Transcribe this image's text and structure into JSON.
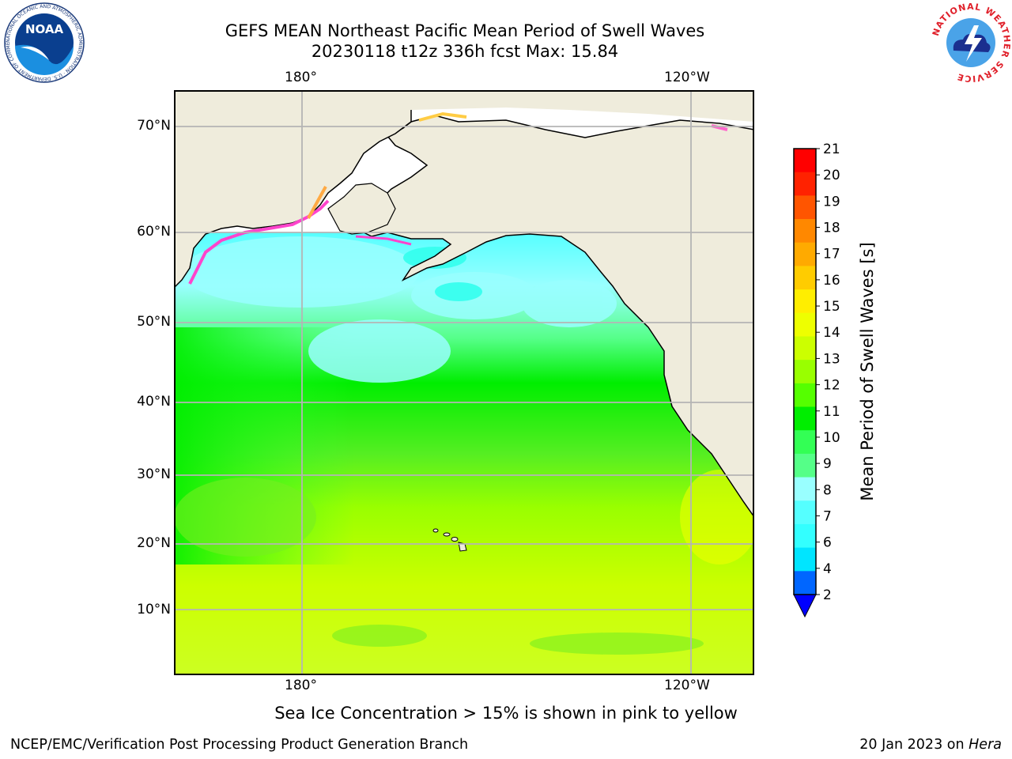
{
  "title": {
    "line1": "GEFS MEAN Northeast Pacific Mean Period of Swell Waves",
    "line2": "20230118 t12z 336h fcst   Max: 15.84"
  },
  "map": {
    "top_lon_labels": [
      "180°",
      "120°W"
    ],
    "bottom_lon_labels": [
      "180°",
      "120°W"
    ],
    "lat_labels": [
      "70°N",
      "60°N",
      "50°N",
      "40°N",
      "30°N",
      "20°N",
      "10°N"
    ],
    "land_color": "#efecdc",
    "grid_color": "#b4b4b4"
  },
  "colorbar": {
    "label": "Mean Period of Swell Waves [s]",
    "ticks": [
      "2",
      "4",
      "6",
      "7",
      "8",
      "9",
      "10",
      "11",
      "12",
      "13",
      "14",
      "15",
      "16",
      "17",
      "18",
      "19",
      "20",
      "21"
    ],
    "colors": [
      "#0066ff",
      "#00e5ff",
      "#33ffff",
      "#55ffff",
      "#99ffff",
      "#55ff88",
      "#33ff55",
      "#00ee00",
      "#55ff00",
      "#99ff00",
      "#ccff00",
      "#eeff00",
      "#ffee00",
      "#ffcc00",
      "#ffaa00",
      "#ff8800",
      "#ff5500",
      "#ff2200",
      "#ff0000"
    ],
    "extend_color": "#0000ff"
  },
  "caption": "Sea Ice Concentration > 15% is shown in pink to yellow",
  "footer": {
    "left": "NCEP/EMC/Verification Post Processing Product Generation Branch",
    "right_date": "20 Jan 2023 on ",
    "right_host": "Hera"
  },
  "logos": {
    "noaa": "NOAA",
    "noaa_ring": "NATIONAL OCEANIC AND ATMOSPHERIC ADMINISTRATION · U.S. DEPARTMENT OF COMMERCE",
    "nws_ring": "NATIONAL WEATHER SERVICE"
  }
}
